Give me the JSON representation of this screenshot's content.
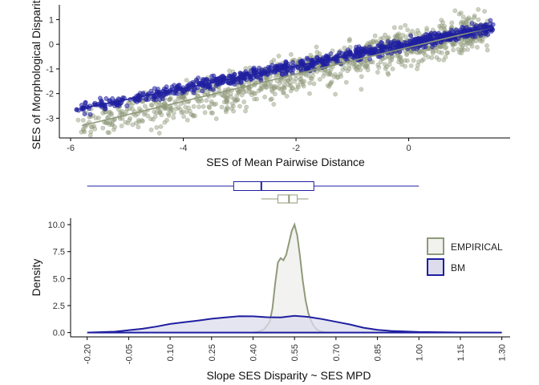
{
  "colors": {
    "empirical": "#8f9a7a",
    "empirical_fill": "#f1f2ee",
    "bm": "#1f1fa0",
    "bm_fill": "#dcdced",
    "axis": "#000000"
  },
  "chart_data": [
    {
      "type": "scatter",
      "xlabel": "SES of Mean Pairwise Distance",
      "ylabel": "SES of Morphological Disparity",
      "xlim": [
        -6.2,
        1.8
      ],
      "ylim": [
        -3.8,
        1.6
      ],
      "xticks": [
        -6,
        -4,
        -2,
        0
      ],
      "yticks": [
        1,
        0,
        -1,
        -2,
        -3
      ],
      "grid": false,
      "series": [
        {
          "key": "EMPIRICAL",
          "x_range": [
            -5.9,
            1.4
          ],
          "fit_line": {
            "x": [
              -5.8,
              1.5
            ],
            "y": [
              -3.3,
              0.7
            ]
          },
          "note_spread": "wide"
        },
        {
          "key": "BM",
          "x_range": [
            -5.9,
            1.5
          ],
          "fit_line": {
            "x": [
              -5.8,
              1.5
            ],
            "y": [
              -2.6,
              0.7
            ]
          },
          "note_spread": "tight"
        }
      ]
    },
    {
      "type": "boxplot",
      "series": [
        {
          "key": "BM",
          "whisker_low": -0.2,
          "q1": 0.33,
          "median": 0.43,
          "q3": 0.62,
          "whisker_high": 1.0
        },
        {
          "key": "EMPIRICAL",
          "whisker_low": 0.43,
          "q1": 0.49,
          "median": 0.53,
          "q3": 0.56,
          "whisker_high": 0.6
        }
      ]
    },
    {
      "type": "area",
      "xlabel": "Slope SES Disparity ~ SES MPD",
      "ylabel": "Density",
      "xlim": [
        -0.26,
        1.33
      ],
      "ylim": [
        -0.4,
        10.6
      ],
      "xticks": [
        "-0.20",
        "-0.05",
        "0.10",
        "0.25",
        "0.40",
        "0.55",
        "0.70",
        "0.85",
        "1.00",
        "1.15",
        "1.30"
      ],
      "yticks": [
        "10.0",
        "7.5",
        "5.0",
        "2.5",
        "0.0"
      ],
      "legend": {
        "position": "right",
        "entries": [
          "EMPIRICAL",
          "BM"
        ]
      },
      "series": [
        {
          "name": "EMPIRICAL",
          "x": [
            0.4,
            0.42,
            0.44,
            0.46,
            0.47,
            0.48,
            0.49,
            0.5,
            0.51,
            0.52,
            0.53,
            0.54,
            0.55,
            0.56,
            0.57,
            0.58,
            0.59,
            0.6,
            0.61,
            0.62,
            0.63,
            0.64,
            0.66,
            0.68
          ],
          "y": [
            0.0,
            0.1,
            0.3,
            1.0,
            2.2,
            4.5,
            6.5,
            6.9,
            6.7,
            7.2,
            8.3,
            9.4,
            10.0,
            9.0,
            7.0,
            4.8,
            3.0,
            1.8,
            1.1,
            0.6,
            0.3,
            0.15,
            0.03,
            0.0
          ]
        },
        {
          "name": "BM",
          "x": [
            -0.2,
            -0.1,
            0.0,
            0.05,
            0.1,
            0.15,
            0.2,
            0.25,
            0.3,
            0.35,
            0.4,
            0.45,
            0.5,
            0.55,
            0.6,
            0.65,
            0.7,
            0.75,
            0.8,
            0.85,
            0.9,
            1.0,
            1.15,
            1.3
          ],
          "y": [
            0.0,
            0.08,
            0.35,
            0.55,
            0.8,
            0.95,
            1.1,
            1.28,
            1.4,
            1.52,
            1.5,
            1.42,
            1.4,
            1.55,
            1.45,
            1.25,
            1.0,
            0.75,
            0.45,
            0.25,
            0.15,
            0.05,
            0.01,
            0.0
          ]
        }
      ]
    }
  ]
}
